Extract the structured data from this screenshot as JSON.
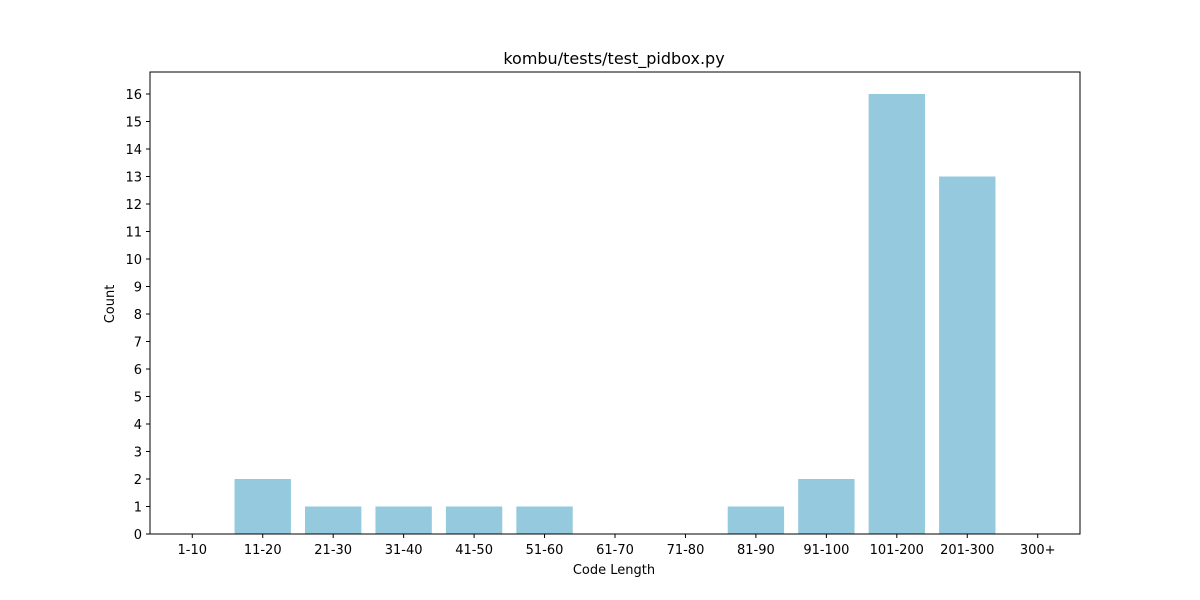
{
  "chart_data": {
    "type": "bar",
    "title": "kombu/tests/test_pidbox.py",
    "xlabel": "Code Length",
    "ylabel": "Count",
    "categories": [
      "1-10",
      "11-20",
      "21-30",
      "31-40",
      "41-50",
      "51-60",
      "61-70",
      "71-80",
      "81-90",
      "91-100",
      "101-200",
      "201-300",
      "300+"
    ],
    "values": [
      0,
      2,
      1,
      1,
      1,
      1,
      0,
      0,
      1,
      2,
      16,
      13,
      0
    ],
    "ylim": [
      0,
      16.8
    ],
    "yticks": [
      0,
      1,
      2,
      3,
      4,
      5,
      6,
      7,
      8,
      9,
      10,
      11,
      12,
      13,
      14,
      15,
      16
    ],
    "grid": false,
    "legend": "none",
    "bar_color": "#95c9de"
  }
}
